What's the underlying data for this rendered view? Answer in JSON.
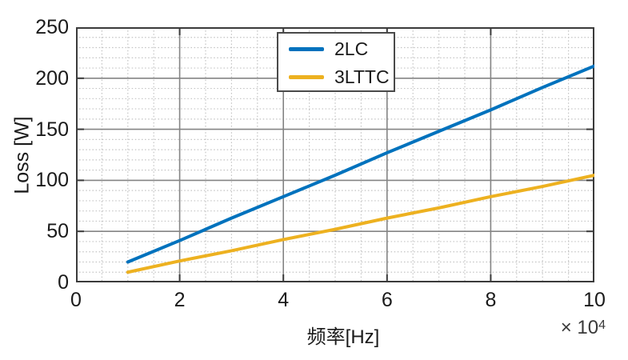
{
  "chart_data": {
    "type": "line",
    "title": "",
    "xlabel": "频率[Hz]",
    "ylabel": "Loss [W]",
    "x_axis_multiplier_base": "× 10",
    "x_axis_multiplier_exponent": "4",
    "xlim": [
      0,
      10
    ],
    "ylim": [
      0,
      250
    ],
    "x_tick_labels": [
      "0",
      "2",
      "4",
      "6",
      "8",
      "10"
    ],
    "x_tick_values": [
      0,
      2,
      4,
      6,
      8,
      10
    ],
    "y_tick_labels": [
      "0",
      "50",
      "100",
      "150",
      "200",
      "250"
    ],
    "y_tick_values": [
      0,
      50,
      100,
      150,
      200,
      250
    ],
    "x_minor_step": 0.5,
    "y_minor_step": 10,
    "grid": {
      "major": "solid",
      "minor": "dotted"
    },
    "legend": {
      "position": "top-center",
      "entries": [
        "2LC",
        "3LTTC"
      ]
    },
    "x": [
      1,
      2,
      3,
      4,
      5,
      6,
      7,
      8,
      9,
      10
    ],
    "x_unit": "×10^4 Hz",
    "series": [
      {
        "name": "2LC",
        "color": "#0072BD",
        "values": [
          20,
          41,
          63,
          84,
          105,
          127,
          148,
          169,
          191,
          212
        ]
      },
      {
        "name": "3LTTC",
        "color": "#EDB120",
        "values": [
          10,
          21,
          31,
          42,
          52,
          63,
          73,
          84,
          94,
          105
        ]
      }
    ]
  },
  "colors": {
    "background": "#ffffff",
    "axis": "#3b3b3b",
    "major_grid": "#848484",
    "minor_grid": "#c3c3c3",
    "text": "#1a1a1a",
    "legend_border": "#4a4a4a"
  }
}
